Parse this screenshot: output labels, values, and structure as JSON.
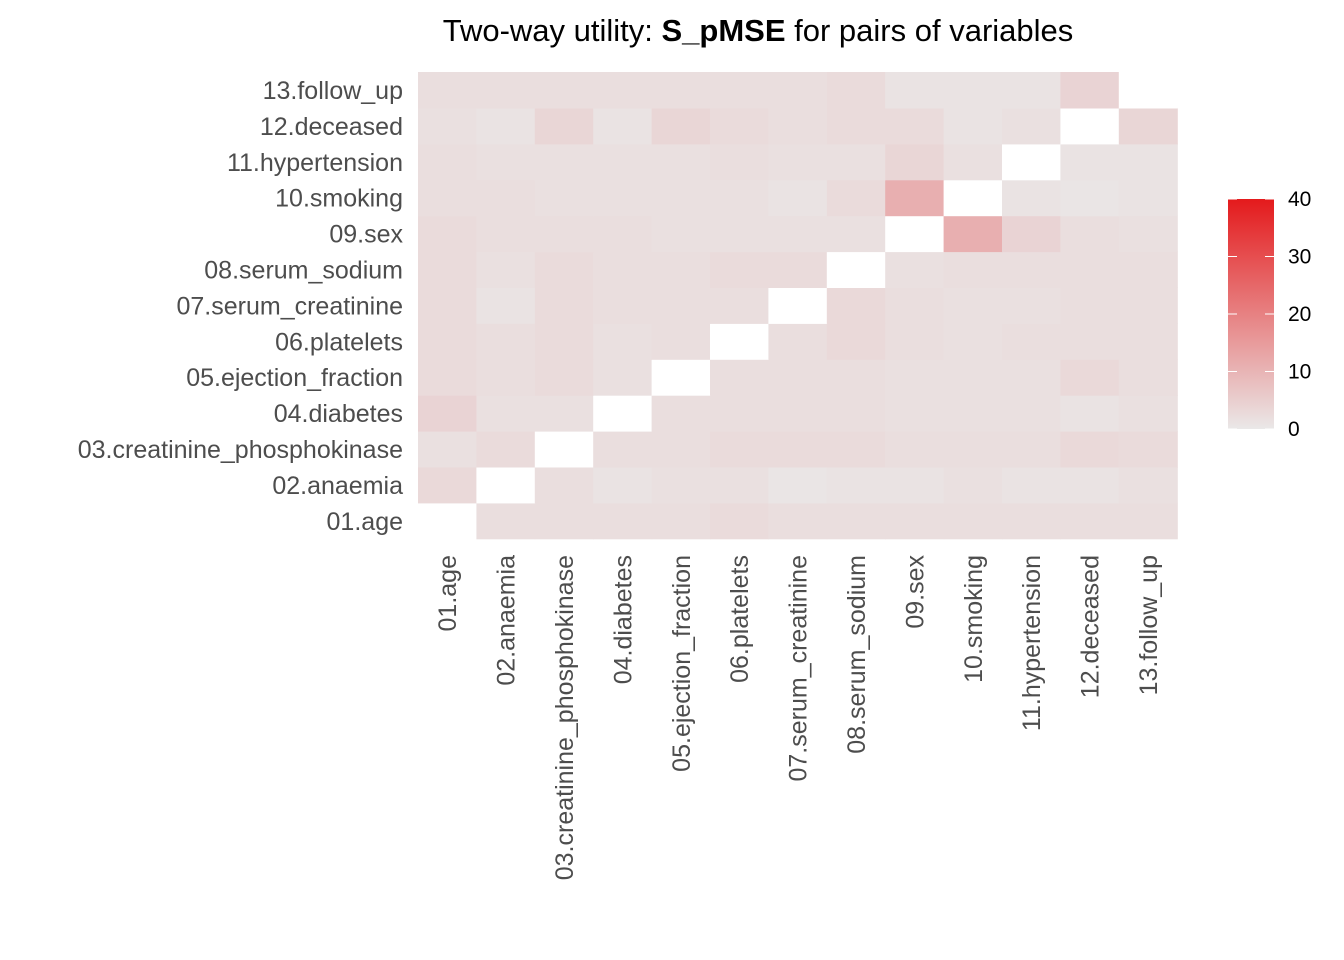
{
  "chart_data": {
    "type": "heatmap",
    "title": {
      "prefix": "Two-way utility: ",
      "emphasis": "S_pMSE",
      "suffix": " for pairs of variables"
    },
    "variables": [
      "01.age",
      "02.anaemia",
      "03.creatinine_phosphokinase",
      "04.diabetes",
      "05.ejection_fraction",
      "06.platelets",
      "07.serum_creatinine",
      "08.serum_sodium",
      "09.sex",
      "10.smoking",
      "11.hypertension",
      "12.deceased",
      "13.follow_up"
    ],
    "values": [
      [
        null,
        2.0,
        2.0,
        2.0,
        2.0,
        2.5,
        2.0,
        2.0,
        2.0,
        2.0,
        2.0,
        2.0,
        2.0
      ],
      [
        3.0,
        null,
        2.0,
        1.0,
        1.5,
        1.5,
        0.5,
        1.0,
        1.0,
        1.5,
        1.0,
        1.0,
        1.5
      ],
      [
        1.5,
        2.5,
        null,
        2.0,
        2.0,
        2.5,
        2.5,
        2.5,
        2.0,
        2.0,
        2.0,
        3.0,
        2.5
      ],
      [
        4.0,
        1.5,
        1.5,
        null,
        2.0,
        2.0,
        2.0,
        2.0,
        1.5,
        1.5,
        1.5,
        1.0,
        1.5
      ],
      [
        2.5,
        2.0,
        2.5,
        1.5,
        null,
        2.0,
        2.0,
        2.0,
        1.5,
        1.5,
        1.5,
        3.0,
        2.0
      ],
      [
        2.5,
        2.0,
        2.5,
        1.5,
        2.0,
        null,
        2.0,
        3.0,
        2.0,
        1.5,
        2.0,
        2.0,
        2.0
      ],
      [
        2.5,
        1.0,
        2.5,
        2.0,
        2.0,
        2.0,
        null,
        3.0,
        2.0,
        1.5,
        1.5,
        2.0,
        2.0
      ],
      [
        2.5,
        1.5,
        2.5,
        2.0,
        2.0,
        2.5,
        2.5,
        null,
        1.5,
        2.0,
        2.0,
        2.0,
        2.0
      ],
      [
        2.5,
        2.0,
        2.0,
        2.0,
        1.5,
        1.5,
        1.5,
        1.5,
        null,
        11.0,
        4.0,
        2.0,
        1.5
      ],
      [
        2.0,
        2.0,
        1.5,
        1.5,
        1.5,
        1.5,
        1.0,
        2.5,
        11.0,
        null,
        1.0,
        0.5,
        1.0
      ],
      [
        2.0,
        1.5,
        1.5,
        1.5,
        1.5,
        2.0,
        1.5,
        1.5,
        3.5,
        1.5,
        null,
        1.0,
        1.0
      ],
      [
        1.5,
        1.0,
        3.5,
        1.0,
        3.5,
        2.5,
        2.0,
        2.5,
        2.5,
        1.0,
        1.5,
        null,
        3.5
      ],
      [
        2.0,
        2.0,
        2.0,
        2.0,
        2.0,
        2.0,
        2.0,
        2.5,
        1.0,
        1.0,
        1.0,
        4.0,
        null
      ]
    ],
    "color_scale": {
      "low": "#eae8e8",
      "high": "#e41a1c",
      "min": 0,
      "max": 40,
      "missing": "#ffffff"
    },
    "legend": {
      "ticks": [
        0,
        10,
        20,
        30,
        40
      ],
      "placement": "right"
    },
    "grid": false
  }
}
